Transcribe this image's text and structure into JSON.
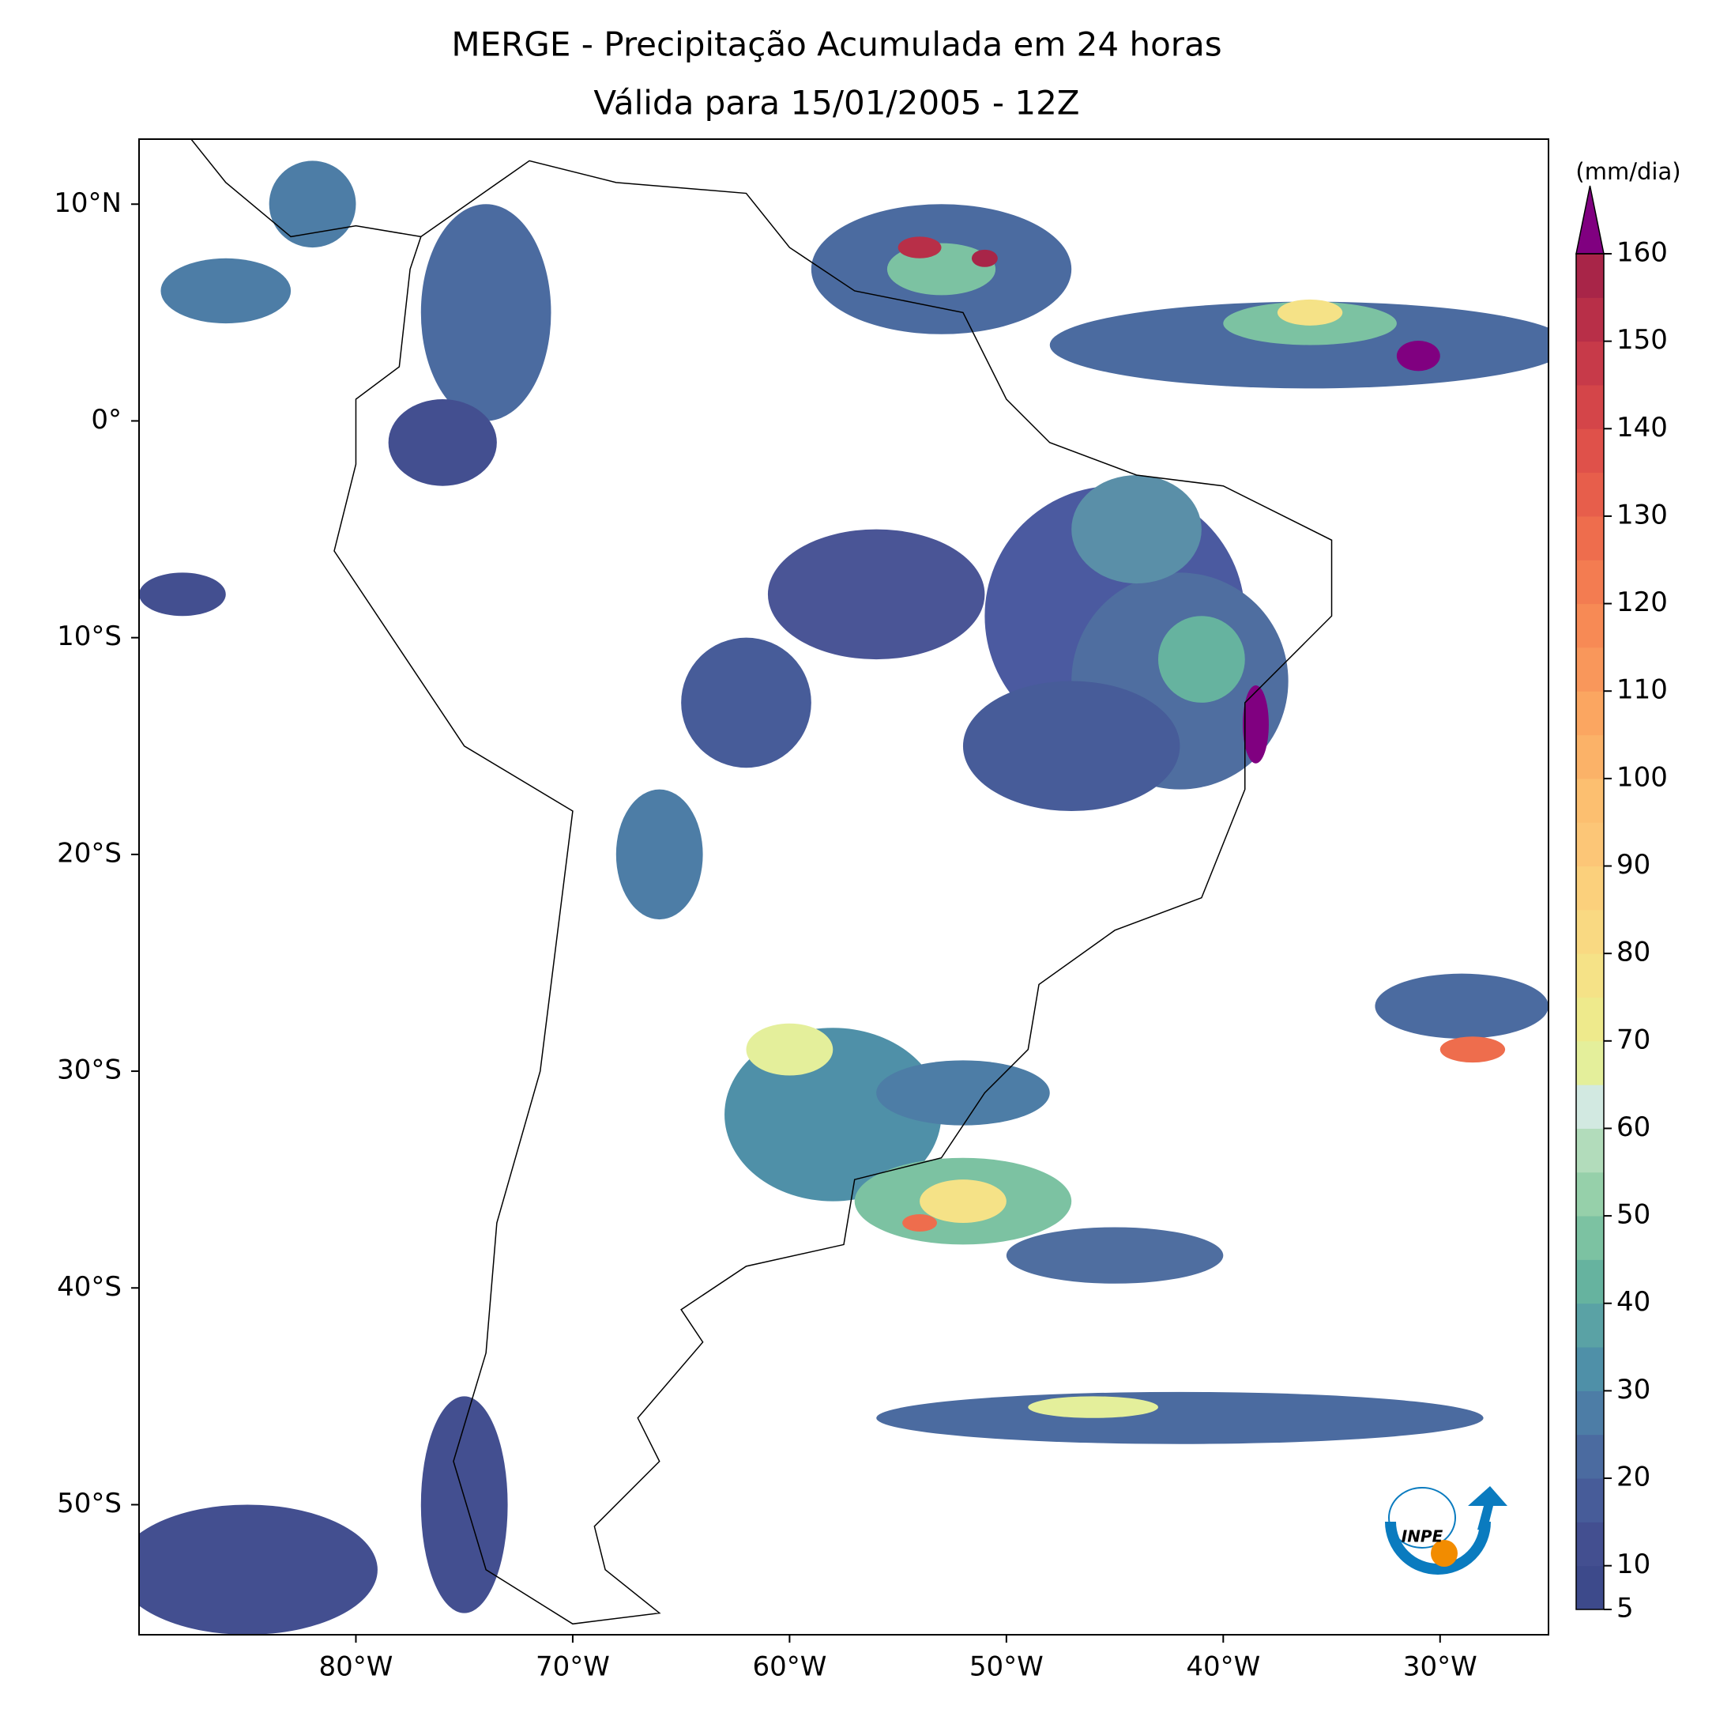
{
  "chart_data": {
    "type": "map",
    "title": "MERGE - Precipitação Acumulada em 24 horas",
    "subtitle": "Válida para 15/01/2005 - 12Z",
    "xlim": [
      -90,
      -25
    ],
    "ylim": [
      -56,
      13
    ],
    "xticks": [
      {
        "value": -80,
        "label": "80°W"
      },
      {
        "value": -70,
        "label": "70°W"
      },
      {
        "value": -60,
        "label": "60°W"
      },
      {
        "value": -50,
        "label": "50°W"
      },
      {
        "value": -40,
        "label": "40°W"
      },
      {
        "value": -30,
        "label": "30°W"
      }
    ],
    "yticks": [
      {
        "value": 10,
        "label": "10°N"
      },
      {
        "value": 0,
        "label": "0°"
      },
      {
        "value": -10,
        "label": "10°S"
      },
      {
        "value": -20,
        "label": "20°S"
      },
      {
        "value": -30,
        "label": "30°S"
      },
      {
        "value": -40,
        "label": "40°S"
      },
      {
        "value": -50,
        "label": "50°S"
      }
    ],
    "colorbar": {
      "label": "(mm/dia)",
      "levels": [
        5,
        10,
        15,
        20,
        25,
        30,
        35,
        40,
        45,
        50,
        55,
        60,
        65,
        70,
        75,
        80,
        85,
        90,
        95,
        100,
        105,
        110,
        115,
        120,
        125,
        130,
        135,
        140,
        145,
        150,
        155,
        160
      ],
      "colors": [
        "#3d4a8b",
        "#434f90",
        "#475c99",
        "#4b6ba0",
        "#4d7da6",
        "#4f90a8",
        "#5aa2a5",
        "#66b39f",
        "#7cc2a2",
        "#96d0aa",
        "#b2dcbb",
        "#d2e9e1",
        "#e4ef9b",
        "#eeea8c",
        "#f5e287",
        "#f9d982",
        "#fbd07c",
        "#fcc677",
        "#fcbf70",
        "#fbb268",
        "#fba661",
        "#f9975b",
        "#f78a55",
        "#f37c51",
        "#ee6d4d",
        "#e75e4b",
        "#df514a",
        "#d44549",
        "#c73a49",
        "#b82f48",
        "#a82548"
      ],
      "over_color": "#800080",
      "ticks": [
        5,
        10,
        20,
        30,
        40,
        50,
        60,
        70,
        80,
        90,
        100,
        110,
        120,
        130,
        140,
        150,
        160
      ]
    },
    "logo": "INPE"
  }
}
